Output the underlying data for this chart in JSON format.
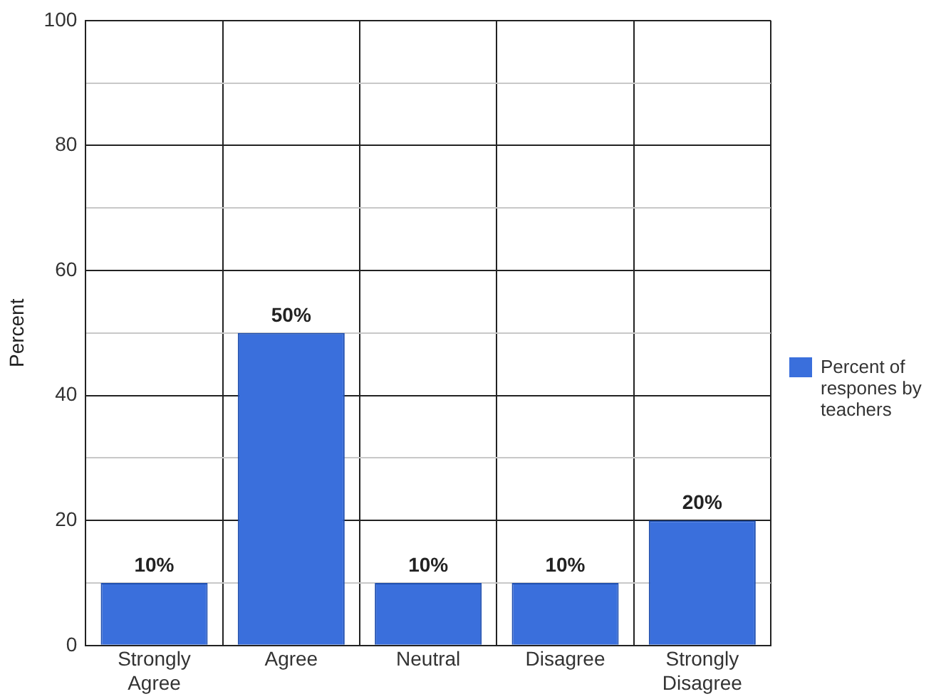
{
  "chart_data": {
    "type": "bar",
    "ylabel": "Percent",
    "categories": [
      "Strongly Agree",
      "Agree",
      "Neutral",
      "Disagree",
      "Strongly Disagree"
    ],
    "series": [
      {
        "name": "Percent of respones by teachers",
        "color": "#3a6fdc",
        "values": [
          10,
          50,
          10,
          10,
          20
        ],
        "value_labels": [
          "10%",
          "50%",
          "10%",
          "10%",
          "20%"
        ]
      }
    ],
    "ylim": [
      0,
      100
    ],
    "yticks": [
      0,
      {
        "value": 10,
        "label": null
      },
      20,
      {
        "value": 30,
        "label": null
      },
      40,
      {
        "value": 50,
        "label": null
      },
      60,
      {
        "value": 70,
        "label": null
      },
      80,
      {
        "value": 90,
        "label": null
      },
      100
    ],
    "grid": true,
    "legend": "right"
  }
}
